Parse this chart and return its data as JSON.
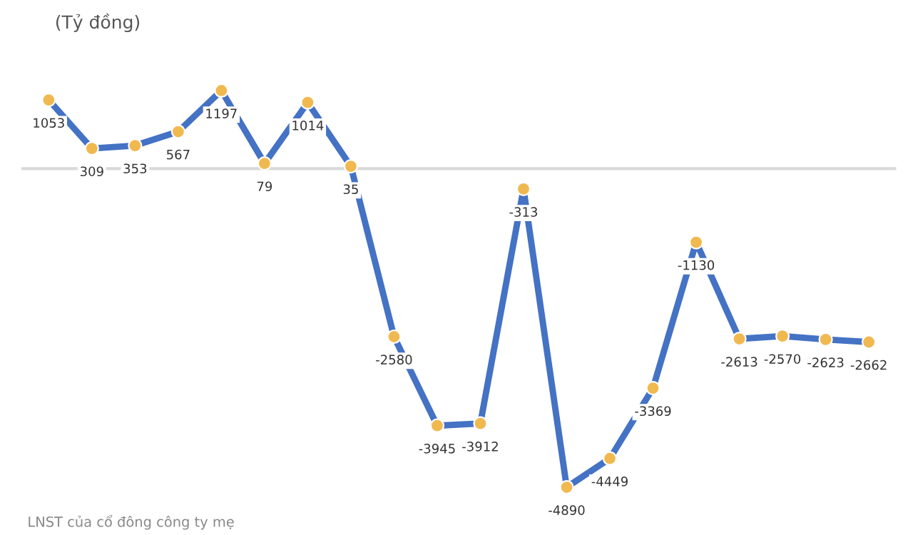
{
  "chart_data": {
    "type": "line",
    "subtitle": "(Tỷ đồng)",
    "categories": [
      null,
      null,
      null,
      null,
      null,
      null,
      null,
      null,
      null,
      null,
      null,
      null,
      null,
      null,
      null,
      null,
      null,
      null,
      null,
      null
    ],
    "series": [
      {
        "color": "#4472c4",
        "colors": [
          "#f0b950",
          "#f0b950",
          "#f0b950",
          "#f0b950",
          "#f0b950",
          "#f0b950",
          "#f0b950",
          "#f0b950",
          "#f0b950",
          "#f0b950",
          "#f0b950",
          "#f0b950",
          "#f0b950",
          "#f0b950",
          "#f0b950",
          "#f0b950",
          "#f0b950",
          "#f0b950",
          "#f0b950",
          "#f0b950"
        ],
        "values": [
          1053,
          309,
          353,
          567,
          1197,
          79,
          1014,
          35,
          -2580,
          -3945,
          -3912,
          -313,
          -4890,
          -4449,
          -3369,
          -1130,
          -2613,
          -2570,
          -2623,
          -2662
        ]
      }
    ],
    "data_labels": true,
    "marker": "circle",
    "line_style": "solid",
    "grid": false,
    "legend": false,
    "annotations": [
      "LNST của cổ đông công ty mẹ"
    ]
  }
}
